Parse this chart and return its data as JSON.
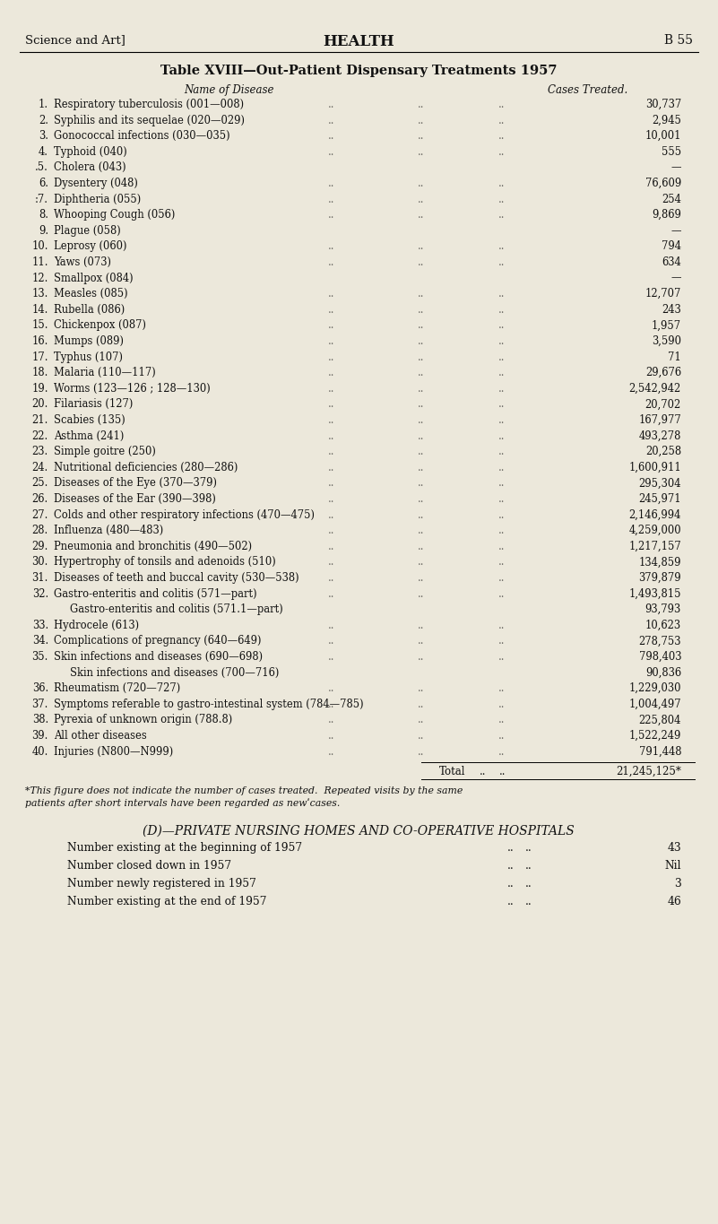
{
  "bg_color": "#ece8db",
  "header_left": "Science and Art]",
  "header_center": "HEALTH",
  "header_right": "B 55",
  "table_title": "Table XVIII—Out-Patient Dispensary Treatments 1957",
  "col_name_label": "Name of Disease",
  "col_cases_label": "Cases Treated.",
  "rows": [
    {
      "num": "1.",
      "name": "Respiratory tuberculosis (001—008)",
      "sub": false,
      "cases": "30,737"
    },
    {
      "num": "2.",
      "name": "Syphilis and its sequelae (020—029)",
      "sub": false,
      "cases": "2,945"
    },
    {
      "num": "3.",
      "name": "Gonococcal infections (030—035)",
      "sub": false,
      "cases": "10,001"
    },
    {
      "num": "4.",
      "name": "Typhoid (040)",
      "sub": false,
      "cases": "555"
    },
    {
      "num": ".5.",
      "name": "Cholera (043)",
      "sub": false,
      "cases": "—"
    },
    {
      "num": "6.",
      "name": "Dysentery (048)",
      "sub": false,
      "cases": "76,609"
    },
    {
      "num": ":7.",
      "name": "Diphtheria (055)",
      "sub": false,
      "cases": "254"
    },
    {
      "num": "8.",
      "name": "Whooping Cough (056)",
      "sub": false,
      "cases": "9,869"
    },
    {
      "num": "9.",
      "name": "Plague (058)",
      "sub": false,
      "cases": "—"
    },
    {
      "num": "10.",
      "name": "Leprosy (060)",
      "sub": false,
      "cases": "794"
    },
    {
      "num": "11.",
      "name": "Yaws (073)",
      "sub": false,
      "cases": "634"
    },
    {
      "num": "12.",
      "name": "Smallpox (084)",
      "sub": false,
      "cases": "—"
    },
    {
      "num": "13.",
      "name": "Measles (085)",
      "sub": false,
      "cases": "12,707"
    },
    {
      "num": "14.",
      "name": "Rubella (086)",
      "sub": false,
      "cases": "243"
    },
    {
      "num": "15.",
      "name": "Chickenpox (087)",
      "sub": false,
      "cases": "1,957"
    },
    {
      "num": "16.",
      "name": "Mumps (089)",
      "sub": false,
      "cases": "3,590"
    },
    {
      "num": "17.",
      "name": "Typhus (107)",
      "sub": false,
      "cases": "71"
    },
    {
      "num": "18.",
      "name": "Malaria (110—117)",
      "sub": false,
      "cases": "29,676"
    },
    {
      "num": "19.",
      "name": "Worms (123—126 ; 128—130)",
      "sub": false,
      "cases": "2,542,942"
    },
    {
      "num": "20.",
      "name": "Filariasis (127)",
      "sub": false,
      "cases": "20,702"
    },
    {
      "num": "21.",
      "name": "Scabies (135)",
      "sub": false,
      "cases": "167,977"
    },
    {
      "num": "22.",
      "name": "Asthma (241)",
      "sub": false,
      "cases": "493,278"
    },
    {
      "num": "23.",
      "name": "Simple goitre (250)",
      "sub": false,
      "cases": "20,258"
    },
    {
      "num": "24.",
      "name": "Nutritional deficiencies (280—286)",
      "sub": false,
      "cases": "1,600,911"
    },
    {
      "num": "25.",
      "name": "Diseases of the Eye (370—379)",
      "sub": false,
      "cases": "295,304"
    },
    {
      "num": "26.",
      "name": "Diseases of the Ear (390—398)",
      "sub": false,
      "cases": "245,971"
    },
    {
      "num": "27.",
      "name": "Colds and other respiratory infections (470—475)",
      "sub": false,
      "cases": "2,146,994"
    },
    {
      "num": "28.",
      "name": "Influenza (480—483)",
      "sub": false,
      "cases": "4,259,000"
    },
    {
      "num": "29.",
      "name": "Pneumonia and bronchitis (490—502)",
      "sub": false,
      "cases": "1,217,157"
    },
    {
      "num": "30.",
      "name": "Hypertrophy of tonsils and adenoids (510)",
      "sub": false,
      "cases": "134,859"
    },
    {
      "num": "31.",
      "name": "Diseases of teeth and buccal cavity (530—538)",
      "sub": false,
      "cases": "379,879"
    },
    {
      "num": "32.",
      "name": "Gastro-enteritis and colitis (571—part)",
      "sub": false,
      "cases": "1,493,815"
    },
    {
      "num": "",
      "name": "Gastro-enteritis and colitis (571.1—part)",
      "sub": true,
      "cases": "93,793"
    },
    {
      "num": "33.",
      "name": "Hydrocele (613)",
      "sub": false,
      "cases": "10,623"
    },
    {
      "num": "34.",
      "name": "Complications of pregnancy (640—649)",
      "sub": false,
      "cases": "278,753"
    },
    {
      "num": "35.",
      "name": "Skin infections and diseases (690—698)",
      "sub": false,
      "cases": "798,403"
    },
    {
      "num": "",
      "name": "Skin infections and diseases (700—716)",
      "sub": true,
      "cases": "90,836"
    },
    {
      "num": "36.",
      "name": "Rheumatism (720—727)",
      "sub": false,
      "cases": "1,229,030"
    },
    {
      "num": "37.",
      "name": "Symptoms referable to gastro-intestinal system (784—785)",
      "sub": false,
      "cases": "1,004,497"
    },
    {
      "num": "38.",
      "name": "Pyrexia of unknown origin (788.8)",
      "sub": false,
      "cases": "225,804"
    },
    {
      "num": "39.",
      "name": "All other diseases",
      "sub": false,
      "cases": "1,522,249"
    },
    {
      "num": "40.",
      "name": "Injuries (N800—N999)",
      "sub": false,
      "cases": "791,448"
    }
  ],
  "total_label": "Total",
  "total_dots": "..",
  "total_value": "21,245,125*",
  "footnote1": "*This figure does not indicate the number of cases treated.  Repeated visits by the same",
  "footnote2": "patients after short intervals have been regarded as newˈcases.",
  "section_d_title": "(D)—PRIVATE NURSING HOMES AND CO-OPERATIVE HOSPITALS",
  "section_d_rows": [
    {
      "label": "Number existing at the beginning of 1957",
      "dots": "..",
      "value": "43"
    },
    {
      "label": "Number closed down in 1957",
      "dots": "..",
      "value": "Nil"
    },
    {
      "label": "Number newly registered in 1957",
      "dots": "..",
      "value": "3"
    },
    {
      "label": "Number existing at the end of 1957",
      "dots": "..",
      "value": "46"
    }
  ]
}
